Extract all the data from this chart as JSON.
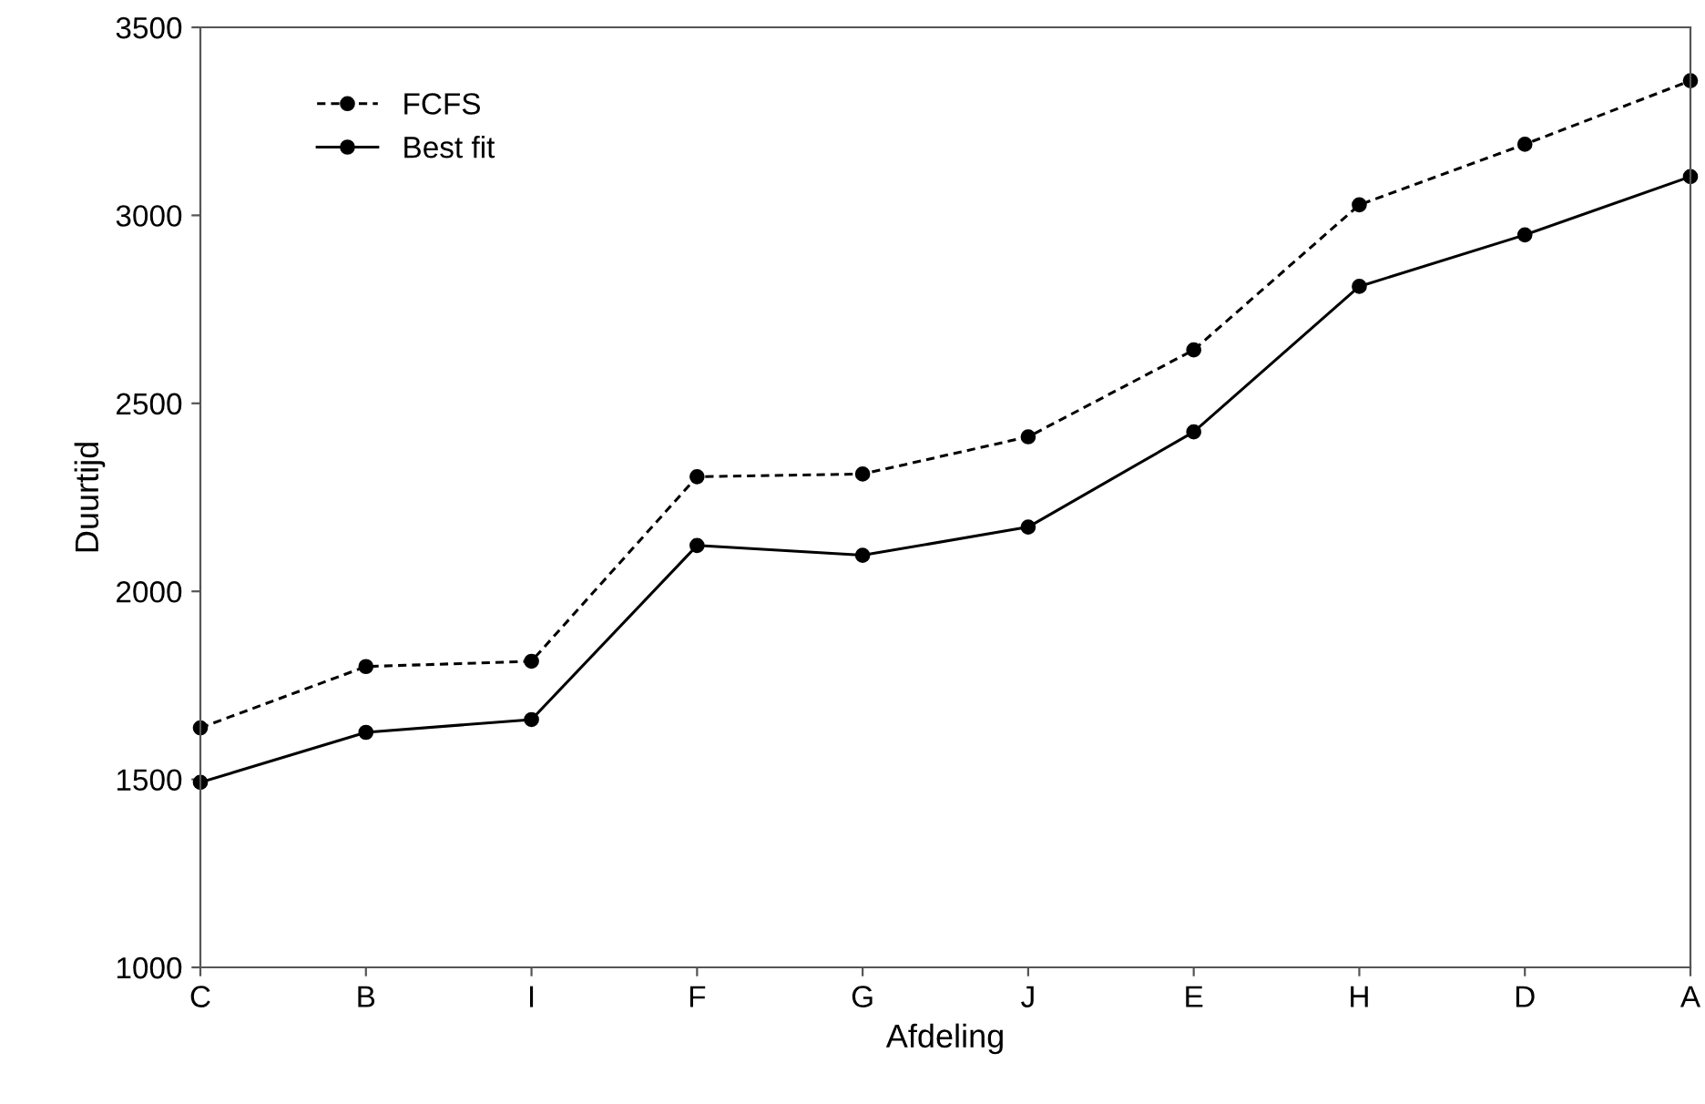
{
  "chart_data": {
    "type": "line",
    "xlabel": "Afdeling",
    "ylabel": "Duurtijd",
    "categories": [
      "C",
      "B",
      "I",
      "F",
      "G",
      "J",
      "E",
      "H",
      "D",
      "A"
    ],
    "series": [
      {
        "name": "FCFS",
        "color": "#000000",
        "line_style": "dashed",
        "values": [
          1637,
          1800,
          1814,
          2305,
          2312,
          2411,
          2642,
          3028,
          3189,
          3358
        ]
      },
      {
        "name": "Best fit",
        "color": "#000000",
        "line_style": "solid",
        "values": [
          1492,
          1625,
          1659,
          2122,
          2096,
          2171,
          2424,
          2811,
          2948,
          3103
        ]
      }
    ],
    "marker": "circle",
    "ylim": [
      1000,
      3500
    ],
    "yticks": [
      1000,
      1500,
      2000,
      2500,
      3000,
      3500
    ],
    "grid": false,
    "legend": "top left"
  }
}
